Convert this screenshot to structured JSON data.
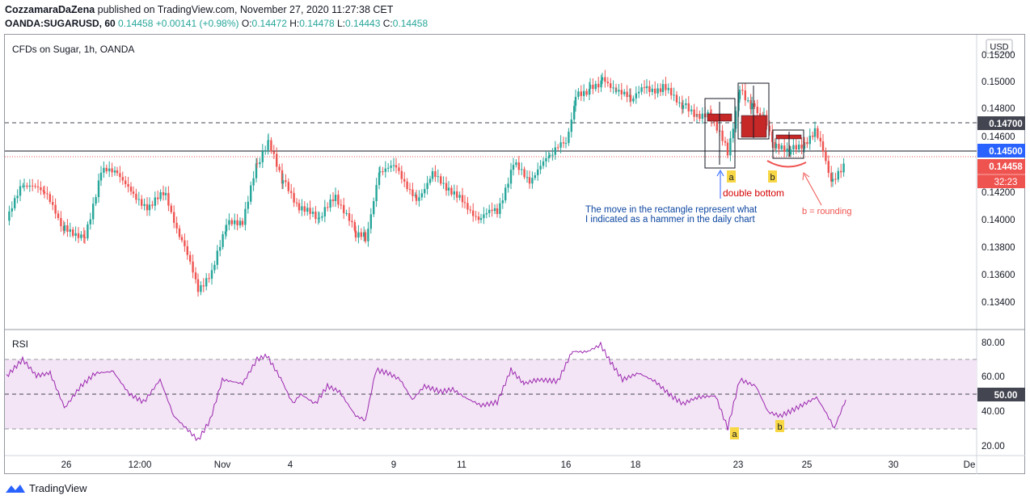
{
  "header": {
    "author": "CozzamaraDaZena",
    "published": "published on TradingView.com, November 27, 2020 11:27:38 CET",
    "symbol": "OANDA:SUGARUSD, 60",
    "last": "0.14458",
    "change": "+0.00141 (+0.98%)",
    "o_label": "O:",
    "o": "0.14472",
    "h_label": "H:",
    "h": "0.14478",
    "l_label": "L:",
    "l": "0.14443",
    "c_label": "C:",
    "c": "0.14458"
  },
  "chart_title": "CFDs on Sugar, 1h, OANDA",
  "currency_badge": "USD",
  "colors": {
    "up": "#26a69a",
    "down": "#ef5350",
    "rsi_line": "#9c27b0",
    "rsi_band": "#f3e5f5",
    "blue_tag": "#2962ff",
    "red_tag": "#ef5350",
    "grey_tag": "#434651"
  },
  "price_axis": {
    "ticks": [
      "0.15200",
      "0.15000",
      "0.14800",
      "0.14600",
      "0.14200",
      "0.14000",
      "0.13800",
      "0.13600",
      "0.13400"
    ]
  },
  "price_tags": {
    "line_1470": "0.14700",
    "line_1450": "0.14500",
    "last": "0.14458",
    "countdown": "32:23"
  },
  "rsi": {
    "label": "RSI",
    "ticks": [
      "80.00",
      "60.00",
      "40.00",
      "20.00"
    ],
    "tag_50": "50.00"
  },
  "time_axis": {
    "ticks": [
      "26",
      "12:00",
      "Nov",
      "4",
      "9",
      "11",
      "16",
      "18",
      "23",
      "25",
      "30",
      "De"
    ]
  },
  "annotations": {
    "a_top": "a",
    "b_top": "b",
    "double_bottom": "double bottom",
    "b_rounding": "b = rounding",
    "note_line1": "The move in the rectangle represent what",
    "note_line2": "I indicated as a hammer in the daily chart",
    "a_rsi": "a",
    "b_rsi": "b"
  },
  "footer": {
    "brand": "TradingView"
  },
  "chart_data": {
    "type": "candlestick",
    "title": "CFDs on Sugar, 1h, OANDA",
    "x": [
      "26",
      "12:00",
      "Nov",
      "4",
      "9",
      "11",
      "16",
      "18",
      "23",
      "25"
    ],
    "close_approx": [
      0.1418,
      0.1428,
      0.1362,
      0.145,
      0.1446,
      0.142,
      0.146,
      0.15,
      0.1458,
      0.1446
    ],
    "ylim": [
      0.133,
      0.1525
    ],
    "horizontal_lines": [
      0.147,
      0.145
    ],
    "last_price": 0.14458,
    "rsi_approx": [
      62,
      55,
      26,
      60,
      50,
      42,
      78,
      55,
      30,
      45
    ],
    "rsi_ylim": [
      20,
      85
    ],
    "rsi_levels": [
      70,
      50,
      30
    ]
  }
}
